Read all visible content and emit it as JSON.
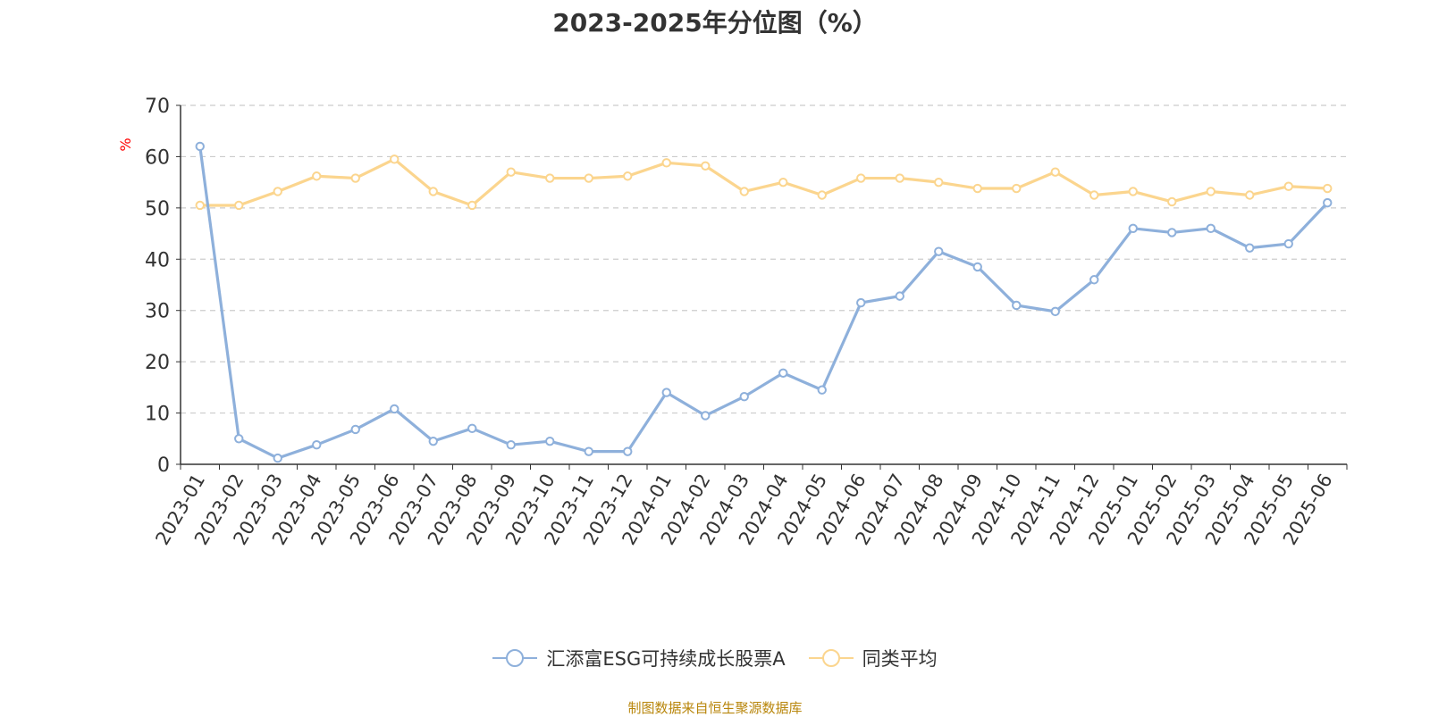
{
  "chart_data": {
    "type": "line",
    "title": "2023-2025年分位图（%）",
    "ylabel": "%",
    "xlabel": "",
    "ylim": [
      0,
      70
    ],
    "yticks": [
      0,
      10,
      20,
      30,
      40,
      50,
      60,
      70
    ],
    "grid": true,
    "legend_position": "bottom",
    "categories": [
      "2023-01",
      "2023-02",
      "2023-03",
      "2023-04",
      "2023-05",
      "2023-06",
      "2023-07",
      "2023-08",
      "2023-09",
      "2023-10",
      "2023-11",
      "2023-12",
      "2024-01",
      "2024-02",
      "2024-03",
      "2024-04",
      "2024-05",
      "2024-06",
      "2024-07",
      "2024-08",
      "2024-09",
      "2024-10",
      "2024-11",
      "2024-12",
      "2025-01",
      "2025-02",
      "2025-03",
      "2025-04",
      "2025-05",
      "2025-06"
    ],
    "series": [
      {
        "name": "汇添富ESG可持续成长股票A",
        "color": "#8eb0db",
        "values": [
          62.0,
          5.0,
          1.2,
          3.8,
          6.8,
          10.8,
          4.5,
          7.0,
          3.8,
          4.5,
          2.5,
          2.5,
          14.0,
          9.5,
          13.2,
          17.8,
          14.5,
          31.5,
          32.8,
          41.5,
          38.5,
          31.0,
          29.8,
          36.0,
          46.0,
          45.2,
          46.0,
          42.2,
          43.0,
          51.0
        ]
      },
      {
        "name": "同类平均",
        "color": "#fbd58e",
        "values": [
          50.5,
          50.5,
          53.2,
          56.2,
          55.8,
          59.5,
          53.2,
          50.5,
          57.0,
          55.8,
          55.8,
          56.2,
          58.8,
          58.2,
          53.2,
          55.0,
          52.5,
          55.8,
          55.8,
          55.0,
          53.8,
          53.8,
          57.0,
          52.5,
          53.2,
          51.2,
          53.2,
          52.5,
          54.2,
          53.8
        ]
      }
    ]
  },
  "footer": {
    "source": "制图数据来自恒生聚源数据库"
  }
}
